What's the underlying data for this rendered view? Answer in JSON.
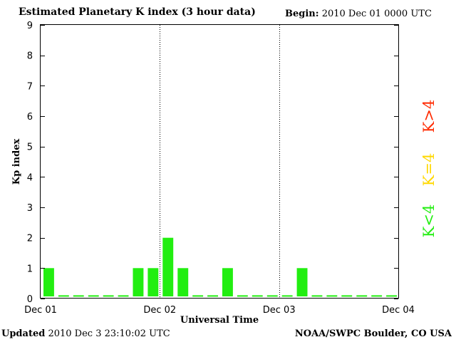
{
  "header": {
    "title": "Estimated Planetary K index (3 hour data)",
    "begin_label": "Begin:",
    "begin_value": "2010 Dec 01 0000 UTC"
  },
  "footer": {
    "updated_label": "Updated",
    "updated_value": "2010 Dec  3 23:10:02 UTC",
    "credit": "NOAA/SWPC Boulder, CO USA"
  },
  "legend": [
    {
      "label": "K>4",
      "color": "#ff2a00"
    },
    {
      "label": "K=4",
      "color": "#ffd800"
    },
    {
      "label": "K<4",
      "color": "#22ee11"
    }
  ],
  "chart_data": {
    "type": "bar",
    "title": "Estimated Planetary K index (3 hour data)",
    "xlabel": "Universal Time",
    "ylabel": "Kp index",
    "ylim": [
      0,
      9
    ],
    "yticks": [
      0,
      1,
      2,
      3,
      4,
      5,
      6,
      7,
      8,
      9
    ],
    "xtick_labels": [
      "Dec 01",
      "Dec 02",
      "Dec 03",
      "Dec 04"
    ],
    "day_separators": [
      "Dec 02",
      "Dec 03"
    ],
    "interval_hours": 3,
    "values": [
      1,
      0,
      0,
      0,
      0,
      0,
      1,
      1,
      2,
      1,
      0,
      0,
      1,
      0,
      0,
      0,
      0,
      1,
      0,
      0,
      0,
      0,
      0,
      0
    ],
    "bar_color": "#22ee11",
    "grid": false
  }
}
